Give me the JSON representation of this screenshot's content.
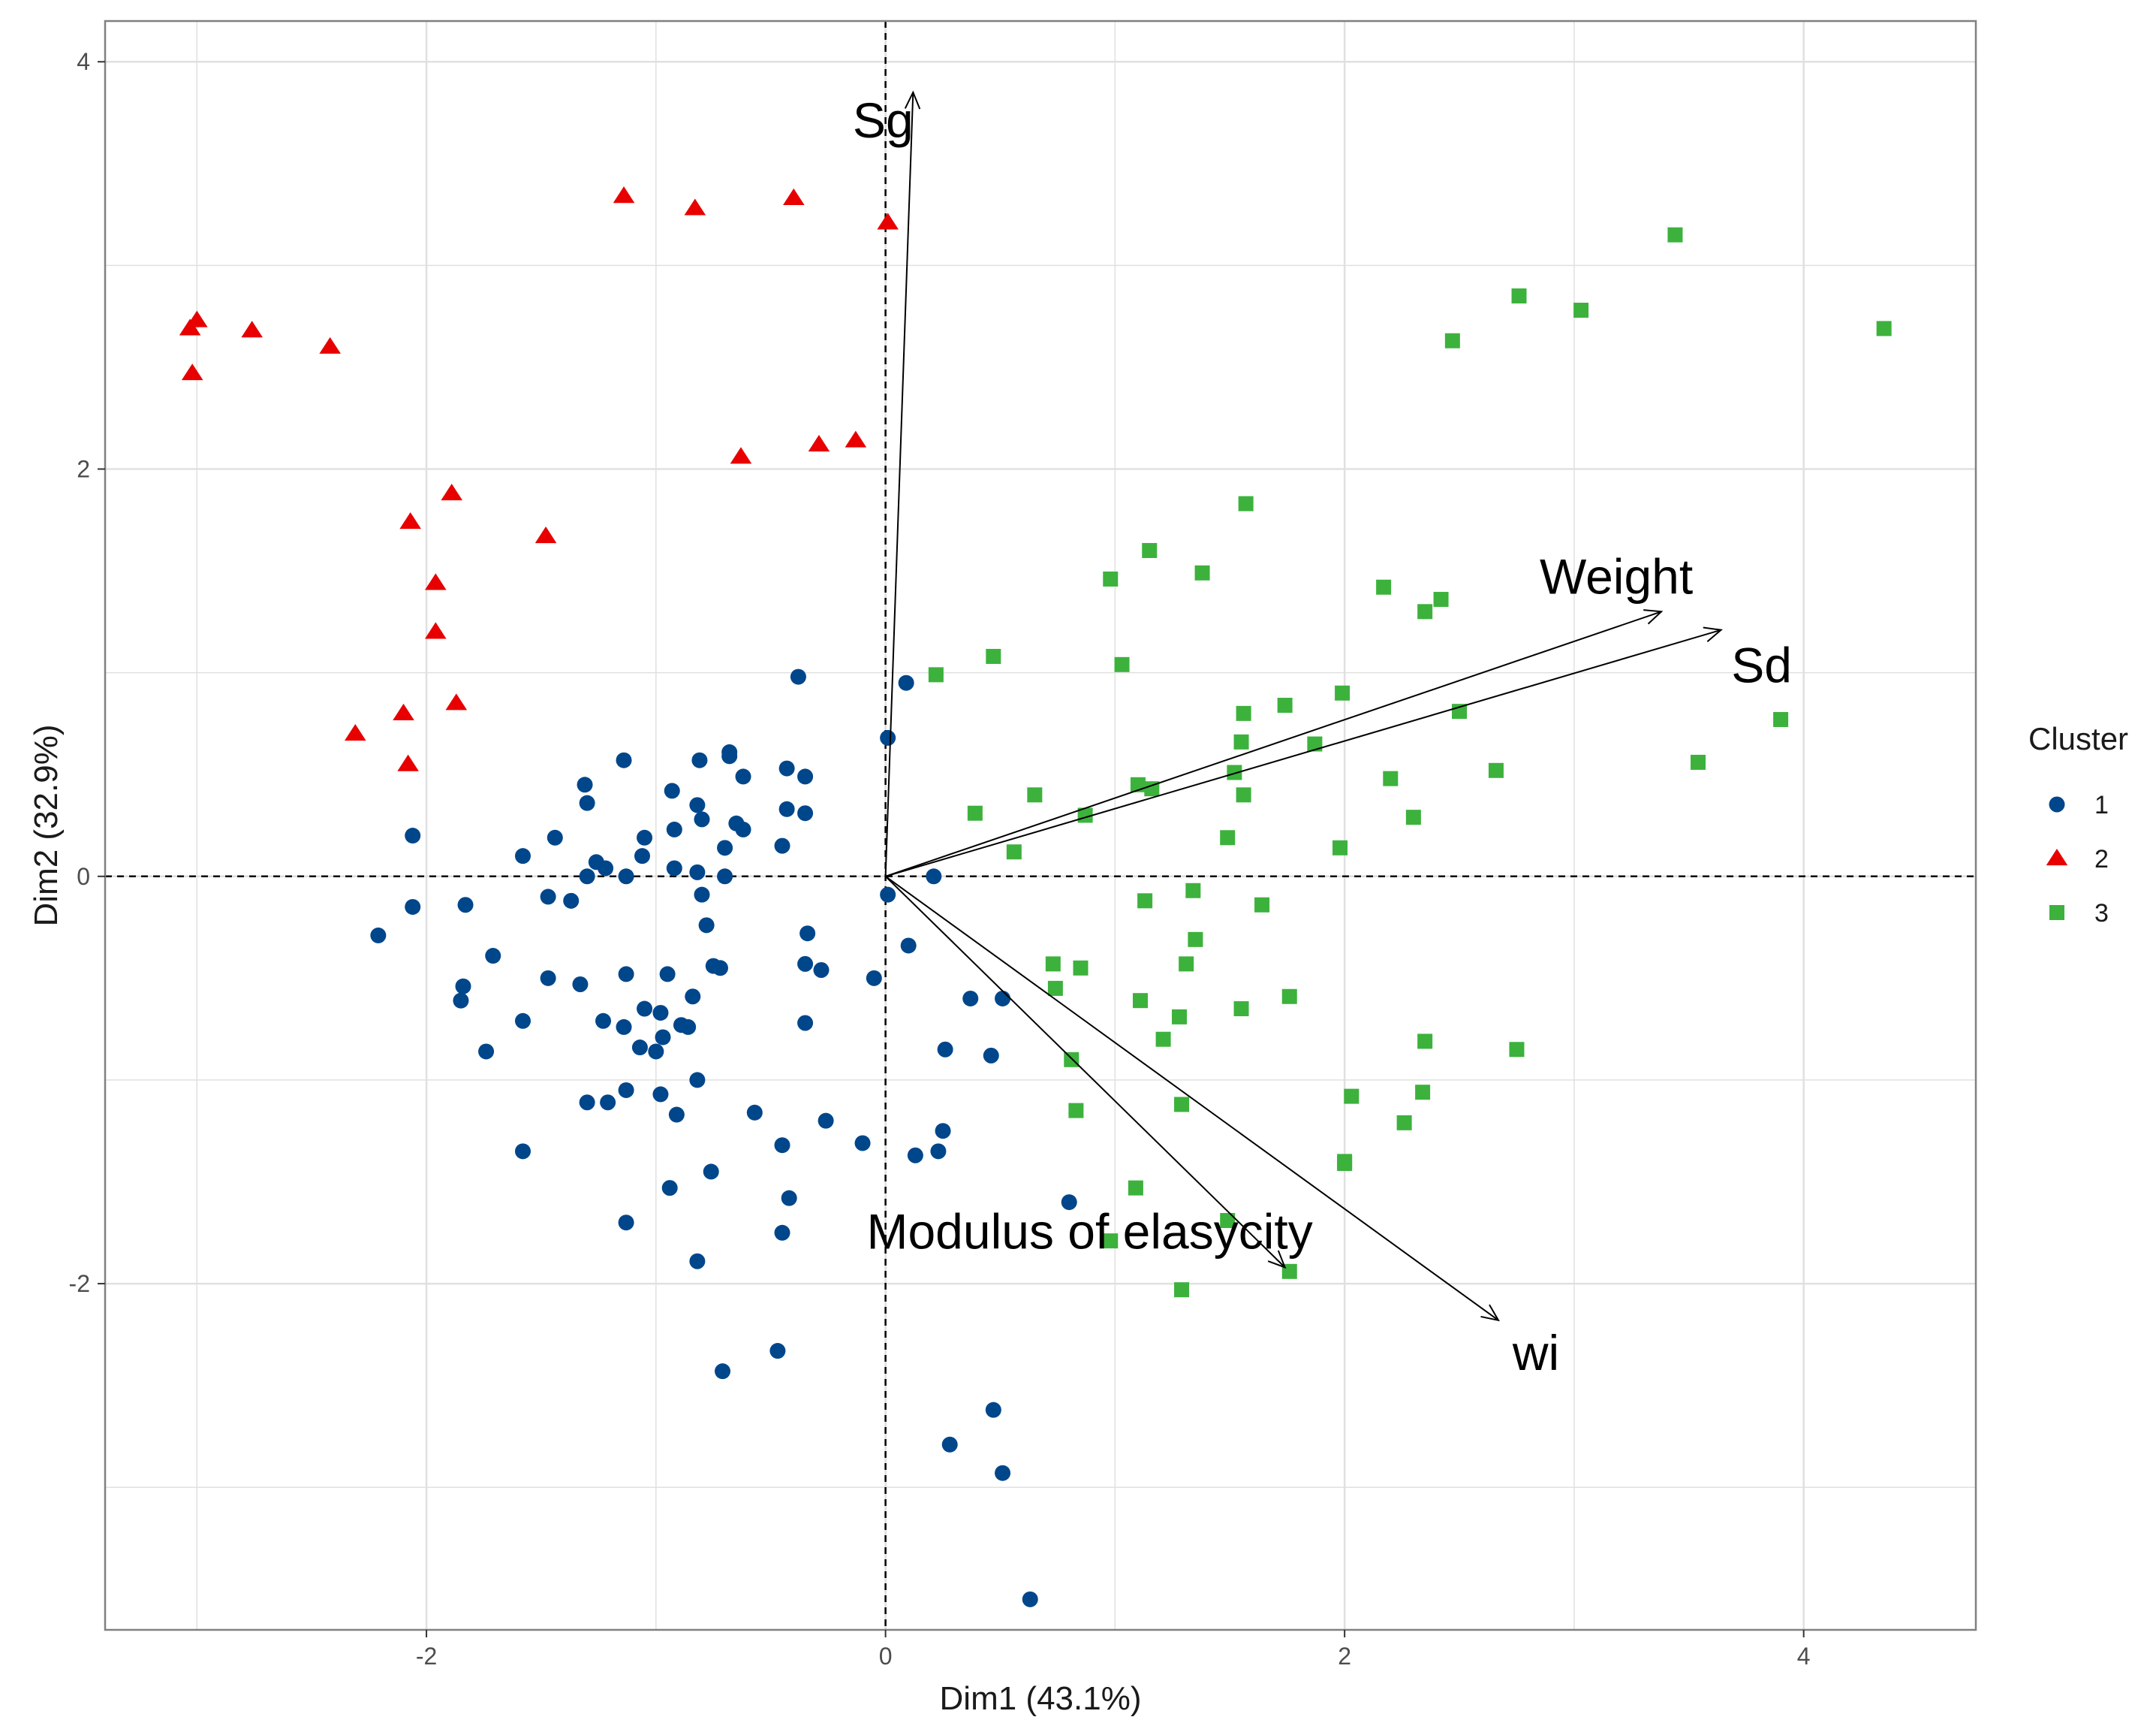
{
  "chart_data": {
    "type": "scatter",
    "title": "",
    "xlabel": "Dim1 (43.1%)",
    "ylabel": "Dim2 (32.9%)",
    "xlim": [
      -3.4,
      4.75
    ],
    "ylim": [
      -3.7,
      4.2
    ],
    "xticks": [
      -2,
      0,
      2,
      4
    ],
    "yticks": [
      -2,
      0,
      2,
      4
    ],
    "xtick_labels": [
      "-2",
      "0",
      "2",
      "4"
    ],
    "ytick_labels": [
      "-2",
      "0",
      "2",
      "4"
    ],
    "grid": true,
    "reference_lines": {
      "x": 0,
      "y": 0,
      "style": "dashed"
    },
    "legend": {
      "title": "Cluster",
      "position": "right",
      "entries": [
        "1",
        "2",
        "3"
      ]
    },
    "colors": {
      "1": "#00468b",
      "2": "#e80000",
      "3": "#3cb23c",
      "grid": "#e0e0e0",
      "arrow": "#000000"
    },
    "markers": {
      "1": "circle",
      "2": "triangle",
      "3": "square"
    },
    "series": [
      {
        "name": "1",
        "points": [
          [
            0.09,
            0.95
          ],
          [
            -0.38,
            0.98
          ],
          [
            0.01,
            0.68
          ],
          [
            -0.68,
            0.61
          ],
          [
            -0.68,
            0.59
          ],
          [
            -0.81,
            0.57
          ],
          [
            -0.62,
            0.49
          ],
          [
            -0.43,
            0.53
          ],
          [
            -0.35,
            0.49
          ],
          [
            -1.14,
            0.57
          ],
          [
            -1.31,
            0.45
          ],
          [
            -0.93,
            0.42
          ],
          [
            -1.3,
            0.36
          ],
          [
            -0.82,
            0.35
          ],
          [
            -0.8,
            0.28
          ],
          [
            -0.43,
            0.33
          ],
          [
            -0.35,
            0.31
          ],
          [
            -0.65,
            0.26
          ],
          [
            -0.62,
            0.23
          ],
          [
            -1.44,
            0.19
          ],
          [
            -1.05,
            0.19
          ],
          [
            -0.92,
            0.23
          ],
          [
            -2.06,
            0.2
          ],
          [
            -1.06,
            0.1
          ],
          [
            -0.92,
            0.04
          ],
          [
            -0.7,
            0.14
          ],
          [
            -0.45,
            0.15
          ],
          [
            -1.58,
            0.1
          ],
          [
            -1.26,
            0.07
          ],
          [
            -1.22,
            0.04
          ],
          [
            -0.82,
            0.02
          ],
          [
            -1.3,
            0.0
          ],
          [
            -1.13,
            0.0
          ],
          [
            -0.7,
            0.0
          ],
          [
            0.21,
            0.0
          ],
          [
            -1.47,
            -0.1
          ],
          [
            -1.37,
            -0.12
          ],
          [
            -0.8,
            -0.09
          ],
          [
            0.01,
            -0.09
          ],
          [
            -2.06,
            -0.15
          ],
          [
            -1.83,
            -0.14
          ],
          [
            -2.21,
            -0.29
          ],
          [
            -0.78,
            -0.24
          ],
          [
            -0.34,
            -0.28
          ],
          [
            0.1,
            -0.34
          ],
          [
            -1.71,
            -0.39
          ],
          [
            -0.75,
            -0.44
          ],
          [
            -0.72,
            -0.45
          ],
          [
            -0.35,
            -0.43
          ],
          [
            -0.28,
            -0.46
          ],
          [
            -1.84,
            -0.54
          ],
          [
            -1.47,
            -0.5
          ],
          [
            -1.33,
            -0.53
          ],
          [
            -1.13,
            -0.48
          ],
          [
            -0.95,
            -0.48
          ],
          [
            -0.05,
            -0.5
          ],
          [
            -1.85,
            -0.61
          ],
          [
            -0.84,
            -0.59
          ],
          [
            -1.05,
            -0.65
          ],
          [
            -0.98,
            -0.67
          ],
          [
            0.37,
            -0.6
          ],
          [
            0.51,
            -0.6
          ],
          [
            -1.58,
            -0.71
          ],
          [
            -1.23,
            -0.71
          ],
          [
            -1.14,
            -0.74
          ],
          [
            -0.89,
            -0.73
          ],
          [
            -0.86,
            -0.74
          ],
          [
            -0.35,
            -0.72
          ],
          [
            -1.07,
            -0.84
          ],
          [
            -1.0,
            -0.86
          ],
          [
            -0.97,
            -0.79
          ],
          [
            -1.74,
            -0.86
          ],
          [
            0.26,
            -0.85
          ],
          [
            0.46,
            -0.88
          ],
          [
            -1.13,
            -1.05
          ],
          [
            -0.82,
            -1.0
          ],
          [
            -1.3,
            -1.11
          ],
          [
            -1.21,
            -1.11
          ],
          [
            -0.98,
            -1.07
          ],
          [
            -0.91,
            -1.17
          ],
          [
            -0.57,
            -1.16
          ],
          [
            -0.26,
            -1.2
          ],
          [
            -1.58,
            -1.35
          ],
          [
            -0.45,
            -1.32
          ],
          [
            -0.1,
            -1.31
          ],
          [
            0.13,
            -1.37
          ],
          [
            0.23,
            -1.35
          ],
          [
            0.25,
            -1.25
          ],
          [
            -0.76,
            -1.45
          ],
          [
            -0.94,
            -1.53
          ],
          [
            -0.42,
            -1.58
          ],
          [
            0.8,
            -1.6
          ],
          [
            -1.13,
            -1.7
          ],
          [
            -0.45,
            -1.75
          ],
          [
            -0.82,
            -1.89
          ],
          [
            -0.47,
            -2.33
          ],
          [
            -0.71,
            -2.43
          ],
          [
            0.47,
            -2.62
          ],
          [
            0.28,
            -2.79
          ],
          [
            0.51,
            -2.93
          ],
          [
            0.63,
            -3.55
          ]
        ]
      },
      {
        "name": "2",
        "points": [
          [
            -1.14,
            3.34
          ],
          [
            -0.83,
            3.28
          ],
          [
            -0.4,
            3.33
          ],
          [
            0.01,
            3.21
          ],
          [
            -3.03,
            2.69
          ],
          [
            -3.0,
            2.73
          ],
          [
            -2.76,
            2.68
          ],
          [
            -3.02,
            2.47
          ],
          [
            -2.42,
            2.6
          ],
          [
            -0.63,
            2.06
          ],
          [
            -0.29,
            2.12
          ],
          [
            -0.13,
            2.14
          ],
          [
            -1.89,
            1.88
          ],
          [
            -2.07,
            1.74
          ],
          [
            -1.48,
            1.67
          ],
          [
            -1.96,
            1.44
          ],
          [
            -1.96,
            1.2
          ],
          [
            -1.87,
            0.85
          ],
          [
            -2.1,
            0.8
          ],
          [
            -2.31,
            0.7
          ],
          [
            -2.08,
            0.55
          ]
        ]
      },
      {
        "name": "3",
        "points": [
          [
            3.44,
            3.15
          ],
          [
            2.76,
            2.85
          ],
          [
            3.03,
            2.78
          ],
          [
            2.47,
            2.63
          ],
          [
            4.35,
            2.69
          ],
          [
            1.57,
            1.83
          ],
          [
            1.15,
            1.6
          ],
          [
            1.38,
            1.49
          ],
          [
            0.98,
            1.46
          ],
          [
            2.17,
            1.42
          ],
          [
            2.42,
            1.36
          ],
          [
            2.35,
            1.3
          ],
          [
            0.47,
            1.08
          ],
          [
            1.03,
            1.04
          ],
          [
            0.22,
            0.99
          ],
          [
            1.99,
            0.9
          ],
          [
            1.56,
            0.8
          ],
          [
            1.74,
            0.84
          ],
          [
            2.5,
            0.81
          ],
          [
            3.9,
            0.77
          ],
          [
            1.55,
            0.66
          ],
          [
            1.87,
            0.65
          ],
          [
            3.54,
            0.56
          ],
          [
            2.66,
            0.52
          ],
          [
            1.52,
            0.51
          ],
          [
            2.2,
            0.48
          ],
          [
            1.1,
            0.45
          ],
          [
            1.16,
            0.43
          ],
          [
            0.65,
            0.4
          ],
          [
            1.56,
            0.4
          ],
          [
            0.39,
            0.31
          ],
          [
            0.87,
            0.3
          ],
          [
            2.3,
            0.29
          ],
          [
            1.49,
            0.19
          ],
          [
            0.56,
            0.12
          ],
          [
            1.98,
            0.14
          ],
          [
            1.34,
            -0.07
          ],
          [
            1.13,
            -0.12
          ],
          [
            1.64,
            -0.14
          ],
          [
            1.35,
            -0.31
          ],
          [
            0.73,
            -0.43
          ],
          [
            0.85,
            -0.45
          ],
          [
            1.31,
            -0.43
          ],
          [
            0.74,
            -0.55
          ],
          [
            1.11,
            -0.61
          ],
          [
            1.76,
            -0.59
          ],
          [
            1.55,
            -0.65
          ],
          [
            1.28,
            -0.69
          ],
          [
            1.21,
            -0.8
          ],
          [
            2.35,
            -0.81
          ],
          [
            2.75,
            -0.85
          ],
          [
            0.81,
            -0.9
          ],
          [
            2.03,
            -1.08
          ],
          [
            2.34,
            -1.06
          ],
          [
            1.29,
            -1.12
          ],
          [
            0.83,
            -1.15
          ],
          [
            2.26,
            -1.21
          ],
          [
            2.0,
            -1.4
          ],
          [
            2.0,
            -1.41
          ],
          [
            1.09,
            -1.53
          ],
          [
            1.49,
            -1.69
          ],
          [
            0.98,
            -1.79
          ],
          [
            1.76,
            -1.94
          ],
          [
            1.29,
            -2.03
          ]
        ]
      }
    ],
    "variables": [
      {
        "name": "Sg",
        "x": 0.12,
        "y": 3.85
      },
      {
        "name": "Weight",
        "x": 3.38,
        "y": 1.3
      },
      {
        "name": "Sd",
        "x": 3.64,
        "y": 1.21
      },
      {
        "name": "Modulus of elasycity",
        "x": 1.74,
        "y": -1.92
      },
      {
        "name": "wi",
        "x": 2.67,
        "y": -2.18
      }
    ]
  }
}
